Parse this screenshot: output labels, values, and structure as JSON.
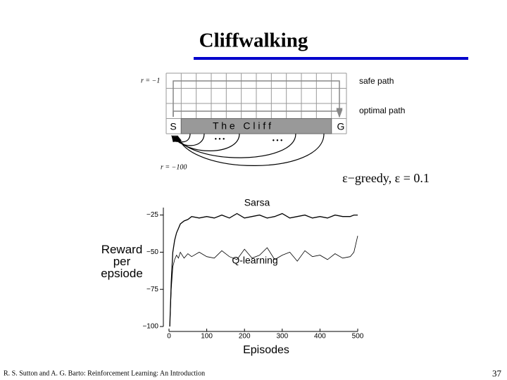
{
  "slide": {
    "title": "Cliffwalking",
    "subtitle": "ε−greedy, ε = 0.1",
    "footer": "R. S. Sutton and A. G. Barto: Reinforcement Learning: An Introduction",
    "page_number": "37"
  },
  "diagram": {
    "reward_step": "r = −1",
    "reward_cliff": "r = −100",
    "safe_path": "safe path",
    "optimal_path": "optimal path",
    "start": "S",
    "cliff": "T h e   C l i f f",
    "goal": "G",
    "dots": "• • •"
  },
  "chart_data": {
    "type": "line",
    "x": [
      2,
      6,
      10,
      15,
      20,
      25,
      30,
      40,
      50,
      60,
      80,
      100,
      120,
      140,
      160,
      180,
      200,
      220,
      240,
      260,
      280,
      300,
      320,
      340,
      360,
      380,
      400,
      420,
      440,
      460,
      480,
      490,
      500
    ],
    "series": [
      {
        "name": "Sarsa",
        "color": "#000000",
        "values": [
          -100,
          -70,
          -50,
          -42,
          -37,
          -34,
          -31,
          -29,
          -28,
          -26,
          -27,
          -26,
          -27,
          -25,
          -27,
          -24,
          -27,
          -26,
          -25,
          -27,
          -26,
          -24,
          -27,
          -26,
          -25,
          -27,
          -26,
          -27,
          -25,
          -26,
          -26,
          -25,
          -25
        ]
      },
      {
        "name": "Q-learning",
        "color": "#000000",
        "values": [
          -100,
          -75,
          -60,
          -55,
          -52,
          -54,
          -50,
          -54,
          -51,
          -53,
          -50,
          -53,
          -54,
          -49,
          -53,
          -55,
          -48,
          -54,
          -52,
          -47,
          -55,
          -52,
          -50,
          -56,
          -49,
          -53,
          -52,
          -55,
          -51,
          -54,
          -53,
          -50,
          -39
        ]
      }
    ],
    "xlabel": "Episodes",
    "ylabel": "Reward per epsiode",
    "xlim": [
      0,
      500
    ],
    "xticks": [
      0,
      100,
      200,
      300,
      400,
      500
    ],
    "ylim": [
      -100,
      -20
    ],
    "yticks": [
      {
        "value": -25,
        "label": "−25"
      },
      {
        "value": -50,
        "label": "−50"
      },
      {
        "value": -75,
        "label": "−75"
      },
      {
        "value": -100,
        "label": "−100"
      }
    ]
  }
}
